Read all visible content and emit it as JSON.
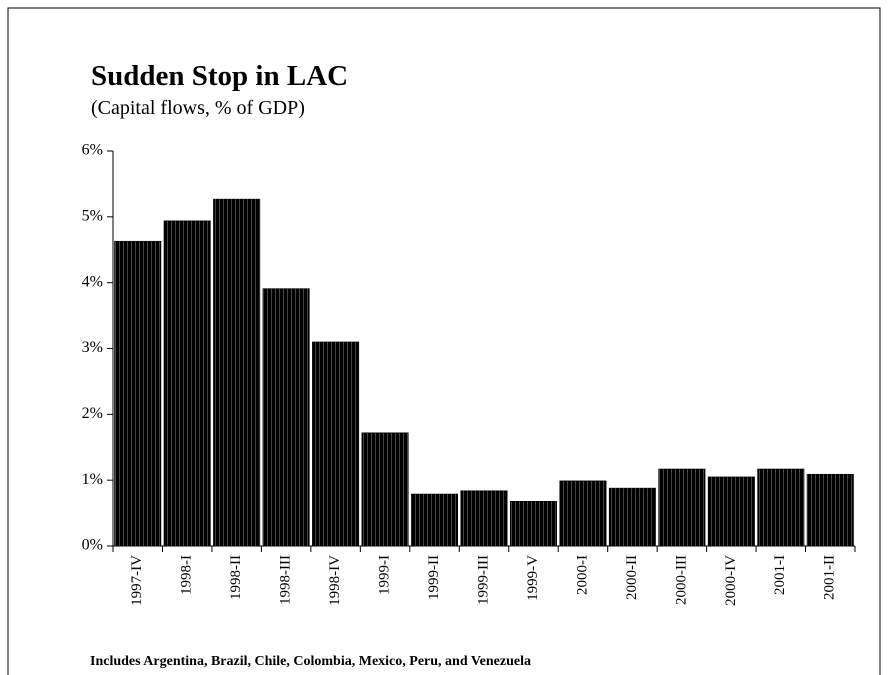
{
  "chart_data": {
    "type": "bar",
    "title": "Sudden Stop in LAC",
    "subtitle": "(Capital flows, % of GDP)",
    "annotation": "Includes Argentina, Brazil, Chile, Colombia, Mexico, Peru, and Venezuela",
    "categories": [
      "1997-IV",
      "1998-I",
      "1998-II",
      "1998-III",
      "1998-IV",
      "1999-I",
      "1999-II",
      "1999-III",
      "1999-V",
      "2000-I",
      "2000-II",
      "2000-III",
      "2000-IV",
      "2001-I",
      "2001-II"
    ],
    "values": [
      4.63,
      4.94,
      5.27,
      3.91,
      3.1,
      1.72,
      0.79,
      0.84,
      0.68,
      0.99,
      0.88,
      1.17,
      1.05,
      1.17,
      1.09
    ],
    "color": "#000000",
    "ylim": [
      0,
      6
    ],
    "yticks": [
      {
        "value": 0,
        "label": "0%"
      },
      {
        "value": 1,
        "label": "1%"
      },
      {
        "value": 2,
        "label": "2%"
      },
      {
        "value": 3,
        "label": "3%"
      },
      {
        "value": 4,
        "label": "4%"
      },
      {
        "value": 5,
        "label": "5%"
      },
      {
        "value": 6,
        "label": "6%"
      }
    ],
    "grid": false
  }
}
